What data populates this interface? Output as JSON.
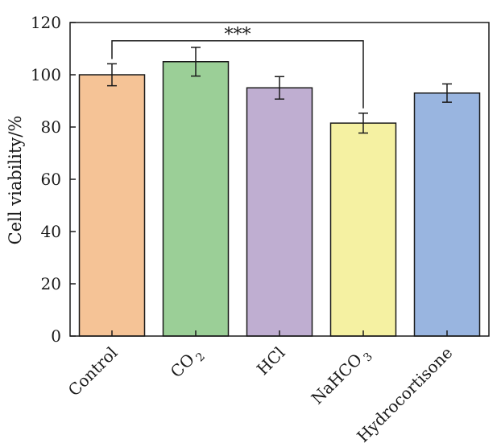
{
  "chart_data": {
    "type": "bar",
    "title": "",
    "xlabel": "",
    "ylabel": "Cell viability/%",
    "ylim": [
      0,
      120
    ],
    "yticks": [
      0,
      20,
      40,
      60,
      80,
      100,
      120
    ],
    "grid": false,
    "legend": "none",
    "categories": [
      {
        "label": "Control",
        "sub": ""
      },
      {
        "label": "CO",
        "sub": "2"
      },
      {
        "label": "HCl",
        "sub": ""
      },
      {
        "label": "NaHCO",
        "sub": "3"
      },
      {
        "label": "Hydrocortisone",
        "sub": ""
      }
    ],
    "values": [
      100,
      105,
      95,
      81.5,
      93
    ],
    "errors": [
      4.2,
      5.5,
      4.3,
      3.8,
      3.5
    ],
    "colors": [
      "#f5c396",
      "#9bcf97",
      "#bfaed1",
      "#f5f1a2",
      "#99b5e0"
    ],
    "significance": {
      "from": 0,
      "to": 3,
      "y": 113,
      "label": "***"
    }
  }
}
